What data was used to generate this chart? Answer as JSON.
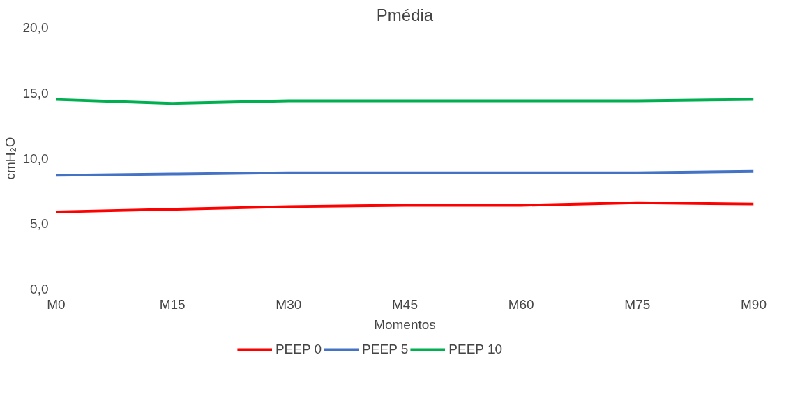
{
  "chart_data": {
    "type": "line",
    "title": "Pmédia",
    "xlabel": "Momentos",
    "ylabel": "cmH₂O",
    "categories": [
      "M0",
      "M15",
      "M30",
      "M45",
      "M60",
      "M75",
      "M90"
    ],
    "series": [
      {
        "name": "PEEP 0",
        "color": "#ff0000",
        "values": [
          5.9,
          6.1,
          6.3,
          6.4,
          6.4,
          6.6,
          6.5
        ]
      },
      {
        "name": "PEEP 5",
        "color": "#4472c4",
        "values": [
          8.7,
          8.8,
          8.9,
          8.9,
          8.9,
          8.9,
          9.0
        ]
      },
      {
        "name": "PEEP 10",
        "color": "#00b050",
        "values": [
          14.5,
          14.2,
          14.4,
          14.4,
          14.4,
          14.4,
          14.5
        ]
      }
    ],
    "ylim": [
      0,
      20
    ],
    "yticks": [
      {
        "value": 0,
        "label": "0,0"
      },
      {
        "value": 5,
        "label": "5,0"
      },
      {
        "value": 10,
        "label": "10,0"
      },
      {
        "value": 15,
        "label": "15,0"
      },
      {
        "value": 20,
        "label": "20,0"
      }
    ],
    "grid": false,
    "legend": "bottom",
    "marker": "none",
    "line_style": "solid"
  }
}
